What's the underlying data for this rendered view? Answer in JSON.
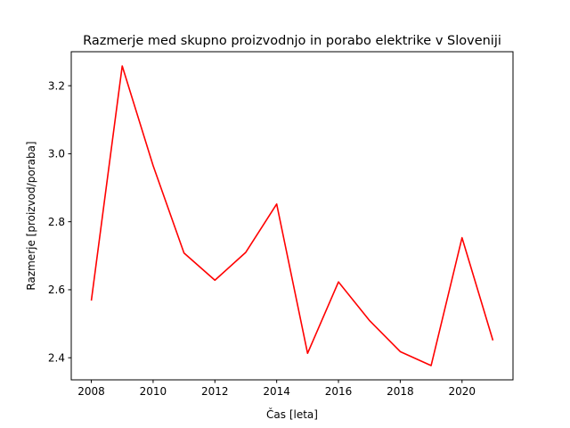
{
  "chart_data": {
    "type": "line",
    "title": "Razmerje med skupno proizvodnjo in porabo elektrike v Sloveniji",
    "xlabel": "Čas [leta]",
    "ylabel": "Razmerje [proizvod/poraba]",
    "xlim": [
      2007.35,
      2021.65
    ],
    "ylim": [
      2.335,
      3.3
    ],
    "x_ticks": [
      2008,
      2010,
      2012,
      2014,
      2016,
      2018,
      2020
    ],
    "y_ticks": [
      2.4,
      2.6,
      2.8,
      3.0,
      3.2
    ],
    "y_tick_labels": [
      "2.4",
      "2.6",
      "2.8",
      "3.0",
      "3.2"
    ],
    "grid": false,
    "series": [
      {
        "color": "#ff0000",
        "x": [
          2008,
          2009,
          2010,
          2011,
          2012,
          2013,
          2014,
          2015,
          2016,
          2017,
          2018,
          2019,
          2020,
          2021
        ],
        "y": [
          2.568,
          3.258,
          2.965,
          2.708,
          2.628,
          2.71,
          2.852,
          2.413,
          2.623,
          2.51,
          2.418,
          2.377,
          2.753,
          2.451
        ]
      }
    ]
  }
}
